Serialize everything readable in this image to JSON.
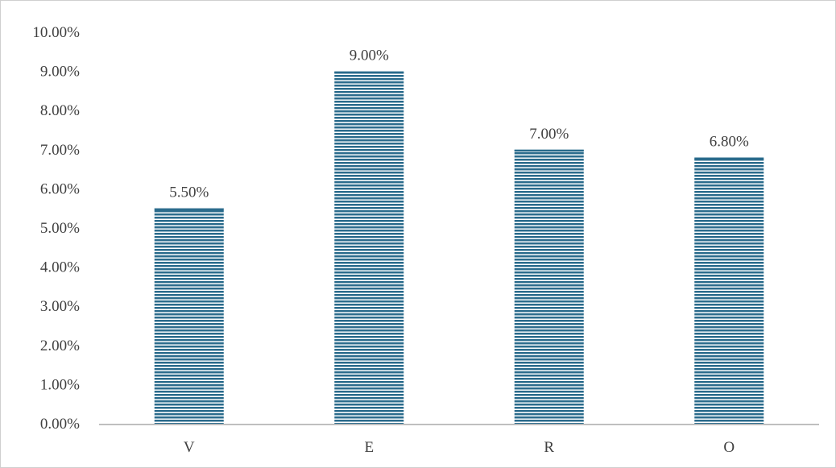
{
  "chart_data": {
    "type": "bar",
    "categories": [
      "V",
      "E",
      "R",
      "O"
    ],
    "values": [
      5.5,
      9.0,
      7.0,
      6.8
    ],
    "data_labels": [
      "5.50%",
      "9.00%",
      "7.00%",
      "6.80%"
    ],
    "title": "",
    "xlabel": "",
    "ylabel": "",
    "ylim": [
      0,
      10
    ],
    "yticks": [
      0,
      1,
      2,
      3,
      4,
      5,
      6,
      7,
      8,
      9,
      10
    ],
    "ytick_labels": [
      "0.00%",
      "1.00%",
      "2.00%",
      "3.00%",
      "4.00%",
      "5.00%",
      "6.00%",
      "7.00%",
      "8.00%",
      "9.00%",
      "10.00%"
    ],
    "grid": false,
    "legend": "none",
    "bar_fill": "horizontal stripes",
    "colors": {
      "bar": "#2a6b8c",
      "stripe": "#ffffff",
      "axis": "#bfbfbf",
      "text": "#404040"
    }
  }
}
